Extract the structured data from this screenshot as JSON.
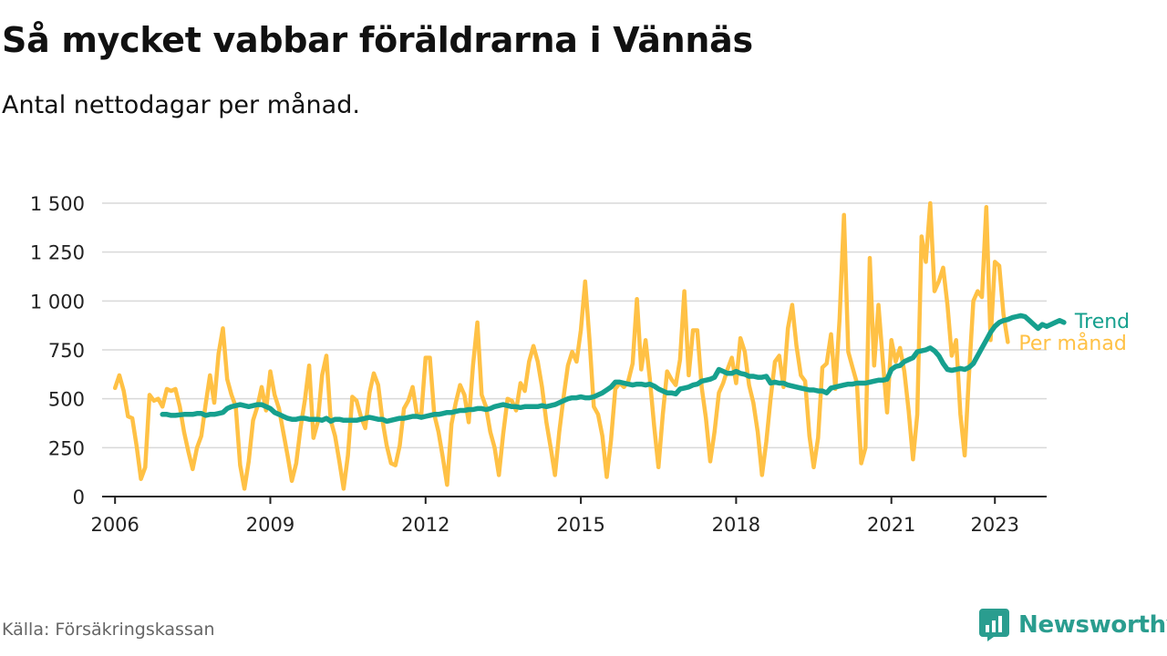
{
  "title": "Så mycket vabbar föräldrarna i Vännäs",
  "subtitle": "Antal nettodagar per månad.",
  "source": "Källa: Försäkringskassan",
  "brand": "Newsworthy",
  "icons": {
    "brand_logo": "bar-chart-speech-bubble-icon"
  },
  "colors": {
    "monthly": "#ffc145",
    "trend": "#16a08e",
    "grid": "#d9d9d9",
    "axis": "#222222",
    "brand": "#2a9d8f"
  },
  "chart_data": {
    "type": "line",
    "title": "Så mycket vabbar föräldrarna i Vännäs",
    "subtitle": "Antal nettodagar per månad.",
    "xlabel": "",
    "ylabel": "",
    "ylim": [
      0,
      1500
    ],
    "xlim": [
      "2005-10",
      "2024-01"
    ],
    "y_ticks": [
      0,
      250,
      500,
      750,
      1000,
      1250,
      1500
    ],
    "y_tick_labels": [
      "0",
      "250",
      "500",
      "750",
      "1 000",
      "1 250",
      "1 500"
    ],
    "x_ticks": [
      2006,
      2009,
      2012,
      2015,
      2018,
      2021,
      2023
    ],
    "x_tick_labels": [
      "2006",
      "2009",
      "2012",
      "2015",
      "2018",
      "2021",
      "2023"
    ],
    "grid": "horizontal",
    "legend": "inline labels at line ends, right",
    "series": [
      {
        "name": "Per månad",
        "x_start": "2006-01",
        "interval": "month",
        "values": [
          555,
          620,
          540,
          410,
          400,
          260,
          90,
          150,
          520,
          490,
          500,
          460,
          550,
          540,
          550,
          460,
          330,
          230,
          140,
          250,
          310,
          470,
          620,
          480,
          730,
          860,
          600,
          520,
          460,
          160,
          40,
          180,
          390,
          460,
          560,
          440,
          640,
          520,
          450,
          330,
          210,
          80,
          170,
          350,
          490,
          670,
          300,
          380,
          620,
          720,
          390,
          310,
          180,
          40,
          210,
          510,
          490,
          410,
          350,
          530,
          630,
          570,
          390,
          260,
          170,
          160,
          260,
          450,
          490,
          560,
          420,
          420,
          710,
          710,
          420,
          330,
          200,
          60,
          370,
          480,
          570,
          520,
          380,
          670,
          890,
          520,
          460,
          330,
          250,
          110,
          320,
          500,
          490,
          440,
          580,
          540,
          690,
          770,
          690,
          560,
          380,
          250,
          110,
          330,
          510,
          670,
          740,
          690,
          850,
          1100,
          800,
          460,
          420,
          310,
          100,
          290,
          550,
          580,
          560,
          590,
          680,
          1010,
          650,
          800,
          600,
          360,
          150,
          420,
          640,
          600,
          570,
          700,
          1050,
          620,
          850,
          850,
          560,
          400,
          180,
          330,
          530,
          580,
          650,
          710,
          580,
          810,
          740,
          570,
          480,
          330,
          110,
          280,
          500,
          690,
          720,
          560,
          860,
          980,
          770,
          620,
          590,
          310,
          150,
          300,
          660,
          680,
          830,
          550,
          910,
          1440,
          740,
          660,
          580,
          170,
          250,
          1220,
          670,
          980,
          700,
          430,
          800,
          690,
          760,
          640,
          440,
          190,
          420,
          1330,
          1200,
          1500,
          1050,
          1100,
          1170,
          980,
          720,
          800,
          420,
          210,
          620,
          1000,
          1050,
          1020,
          1480,
          800,
          1200,
          1180,
          930,
          790
        ]
      },
      {
        "name": "Trend",
        "x_start": "2006-12",
        "interval": "month",
        "values": [
          420,
          420,
          415,
          415,
          418,
          420,
          420,
          420,
          425,
          425,
          415,
          420,
          420,
          425,
          430,
          450,
          460,
          465,
          470,
          465,
          460,
          465,
          470,
          470,
          460,
          450,
          430,
          420,
          410,
          400,
          395,
          395,
          400,
          400,
          395,
          395,
          395,
          390,
          400,
          385,
          395,
          395,
          390,
          390,
          390,
          390,
          395,
          400,
          405,
          400,
          395,
          395,
          385,
          390,
          395,
          400,
          400,
          405,
          410,
          410,
          405,
          410,
          415,
          420,
          420,
          425,
          430,
          430,
          435,
          440,
          440,
          445,
          445,
          450,
          450,
          445,
          450,
          460,
          465,
          470,
          465,
          460,
          460,
          455,
          460,
          460,
          460,
          460,
          465,
          460,
          465,
          470,
          480,
          490,
          500,
          505,
          505,
          510,
          505,
          505,
          510,
          520,
          530,
          545,
          560,
          585,
          585,
          580,
          575,
          570,
          575,
          575,
          570,
          575,
          565,
          550,
          540,
          530,
          530,
          525,
          550,
          555,
          560,
          570,
          575,
          590,
          595,
          600,
          610,
          650,
          640,
          630,
          630,
          640,
          630,
          625,
          615,
          615,
          610,
          610,
          615,
          580,
          585,
          580,
          580,
          570,
          565,
          560,
          555,
          550,
          545,
          545,
          540,
          540,
          530,
          555,
          560,
          565,
          570,
          575,
          575,
          580,
          580,
          580,
          585,
          590,
          595,
          595,
          600,
          650,
          665,
          670,
          690,
          700,
          710,
          740,
          745,
          750,
          760,
          745,
          720,
          680,
          650,
          645,
          650,
          655,
          650,
          660,
          680,
          720,
          760,
          800,
          840,
          870,
          890,
          900,
          905,
          915,
          920,
          925,
          920,
          900,
          880,
          860,
          880,
          870,
          880,
          890,
          900,
          890
        ]
      }
    ]
  }
}
